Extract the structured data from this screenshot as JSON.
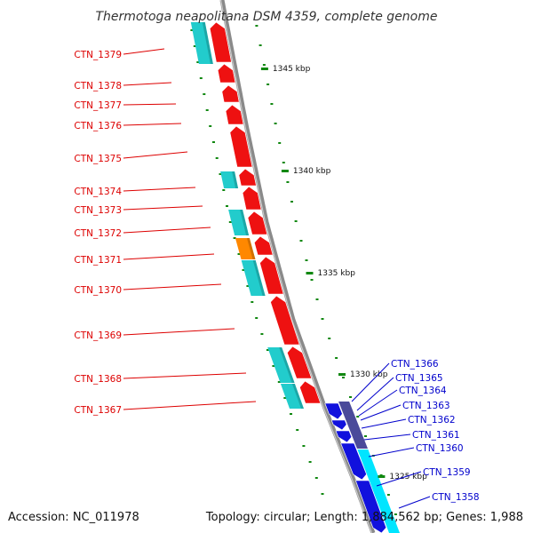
{
  "title": "Thermotoga neapolitana DSM 4359, complete genome",
  "footer": {
    "accession": "Accession: NC_011978",
    "summary": "Topology: circular; Length: 1,884,562 bp; Genes: 1,988"
  },
  "ruler": [
    "1345 kbp",
    "1340 kbp",
    "1335 kbp",
    "1330 kbp",
    "1325 kbp"
  ],
  "colors": {
    "forward_gene": "#ee1111",
    "reverse_gene": "#1111dd",
    "cds_cyan": "#22cccc",
    "cds_orange": "#ff8800",
    "reverse_cds": "#00e5ff",
    "reverse_cds_dark": "#4a4a9a",
    "backbone": "#8a8a8a",
    "tick": "#118811",
    "left_label": "#dd0000",
    "right_label": "#0000cc"
  },
  "labels_left": [
    "CTN_1379",
    "CTN_1378",
    "CTN_1377",
    "CTN_1376",
    "CTN_1375",
    "CTN_1374",
    "CTN_1373",
    "CTN_1372",
    "CTN_1371",
    "CTN_1370",
    "CTN_1369",
    "CTN_1368",
    "CTN_1367"
  ],
  "labels_right": [
    "CTN_1366",
    "CTN_1365",
    "CTN_1364",
    "CTN_1363",
    "CTN_1362",
    "CTN_1361",
    "CTN_1360",
    "CTN_1359",
    "CTN_1358"
  ]
}
